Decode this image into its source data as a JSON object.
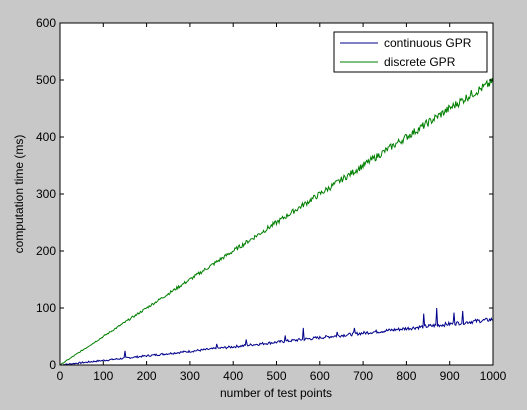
{
  "chart_data": {
    "type": "line",
    "title": "",
    "xlabel": "number of test points",
    "ylabel": "computation time (ms)",
    "xlim": [
      0,
      1000
    ],
    "ylim": [
      0,
      600
    ],
    "xticks": [
      0,
      100,
      200,
      300,
      400,
      500,
      600,
      700,
      800,
      900,
      1000
    ],
    "yticks": [
      0,
      100,
      200,
      300,
      400,
      500,
      600
    ],
    "grid": false,
    "legend_position": "top-right",
    "background": "#c8c8c8",
    "plot_background": "#ffffff",
    "series": [
      {
        "name": "continuous GPR",
        "color": "#00008b",
        "x": [
          0,
          50,
          100,
          150,
          200,
          250,
          300,
          350,
          400,
          450,
          500,
          550,
          600,
          650,
          700,
          750,
          800,
          850,
          900,
          950,
          1000
        ],
        "y": [
          0,
          4,
          8,
          12,
          16,
          20,
          24,
          28,
          32,
          36,
          40,
          44,
          48,
          52,
          56,
          60,
          64,
          68,
          72,
          76,
          80
        ],
        "spikes": [
          [
            150,
            25
          ],
          [
            362,
            37
          ],
          [
            430,
            45
          ],
          [
            520,
            52
          ],
          [
            535,
            85
          ],
          [
            562,
            65
          ],
          [
            640,
            58
          ],
          [
            680,
            65
          ],
          [
            765,
            70
          ],
          [
            840,
            90
          ],
          [
            855,
            100
          ],
          [
            870,
            100
          ],
          [
            910,
            92
          ],
          [
            930,
            95
          ],
          [
            975,
            88
          ],
          [
            995,
            85
          ]
        ]
      },
      {
        "name": "discrete GPR",
        "color": "#007f00",
        "x": [
          0,
          50,
          100,
          150,
          200,
          250,
          300,
          350,
          400,
          450,
          500,
          550,
          600,
          650,
          700,
          750,
          800,
          850,
          900,
          950,
          1000
        ],
        "y": [
          0,
          25,
          50,
          75,
          100,
          125,
          150,
          175,
          200,
          225,
          250,
          275,
          300,
          325,
          350,
          375,
          400,
          425,
          450,
          475,
          497
        ]
      }
    ]
  }
}
